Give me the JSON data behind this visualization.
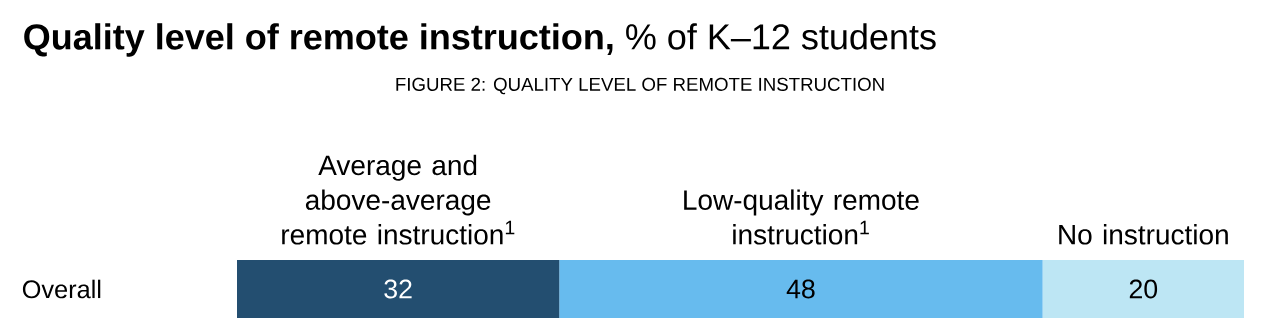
{
  "chart_data": {
    "type": "bar",
    "orientation": "horizontal",
    "stacked": true,
    "data_labels": true,
    "title": "**Quality level of remote instruction,** % of K–12 students",
    "subtitle": "FIGURE 2: QUALITY LEVEL OF REMOTE INSTRUCTION",
    "categories": [
      "Overall"
    ],
    "series": [
      {
        "name": "Average and above-average remote instruction$^{1}$",
        "color": "#234e70",
        "values": [
          32
        ]
      },
      {
        "name": "Low-quality remote instruction$^{1}$",
        "color": "#67bbee",
        "values": [
          48
        ]
      },
      {
        "name": "No instruction",
        "color": "#bde6f4",
        "values": [
          20
        ]
      }
    ]
  }
}
